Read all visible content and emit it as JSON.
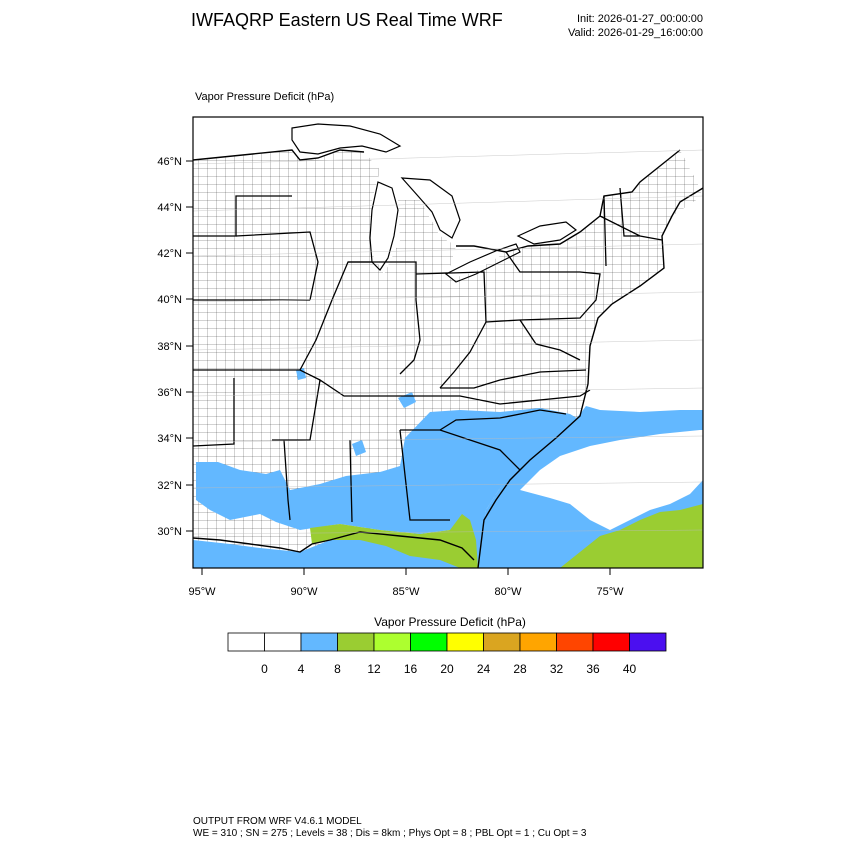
{
  "header": {
    "title": "IWFAQRP Eastern US Real Time WRF",
    "init": "Init: 2026-01-27_00:00:00",
    "valid": "Valid: 2026-01-29_16:00:00"
  },
  "map": {
    "subtitle": "Vapor Pressure Deficit   (hPa)",
    "lat_labels": [
      "46°N",
      "44°N",
      "42°N",
      "40°N",
      "38°N",
      "36°N",
      "34°N",
      "32°N",
      "30°N"
    ],
    "lon_labels": [
      "95°W",
      "90°W",
      "85°W",
      "80°W",
      "75°W"
    ],
    "colors": {
      "land": "#ffffff",
      "vpd_4_8": "#63b8ff",
      "vpd_8_12": "#9acd32",
      "borders": "#000000"
    }
  },
  "colorbar": {
    "title": "Vapor Pressure Deficit  (hPa)",
    "labels": [
      "0",
      "4",
      "8",
      "12",
      "16",
      "20",
      "24",
      "28",
      "32",
      "36",
      "40"
    ],
    "colors": [
      "#ffffff",
      "#ffffff",
      "#63b8ff",
      "#9acd32",
      "#adff2f",
      "#00ff00",
      "#ffff00",
      "#daa520",
      "#ffa500",
      "#ff4500",
      "#ff0000",
      "#4b0ff0"
    ]
  },
  "footer": {
    "line1": "OUTPUT FROM WRF V4.6.1 MODEL",
    "line2": "WE = 310 ; SN = 275 ; Levels = 38 ; Dis = 8km ; Phys Opt = 8 ; PBL Opt = 1 ; Cu Opt = 3"
  }
}
